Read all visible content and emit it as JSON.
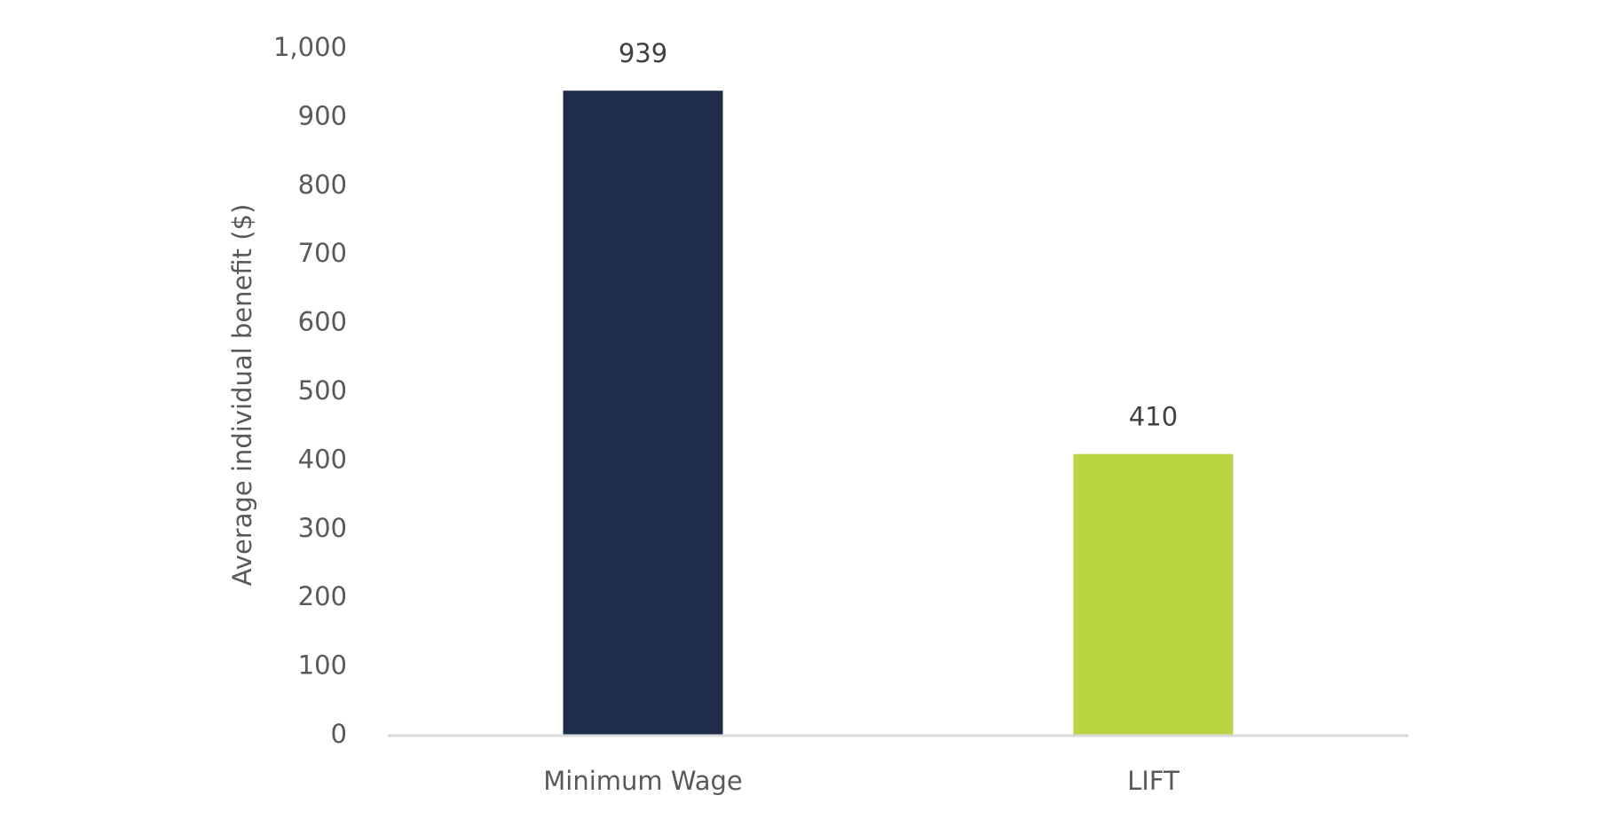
{
  "chart_data": {
    "type": "bar",
    "y_axis_label": "Average individual benefit ($)",
    "categories": [
      "Minimum Wage",
      "LIFT"
    ],
    "values": [
      939,
      410
    ],
    "colors": [
      "#1f2d4a",
      "#b9d542"
    ],
    "ylim": [
      0,
      1000
    ],
    "yticks": [
      0,
      100,
      200,
      300,
      400,
      500,
      600,
      700,
      800,
      900,
      {
        "value": 1000,
        "label": "1,000"
      }
    ],
    "grid": false
  }
}
